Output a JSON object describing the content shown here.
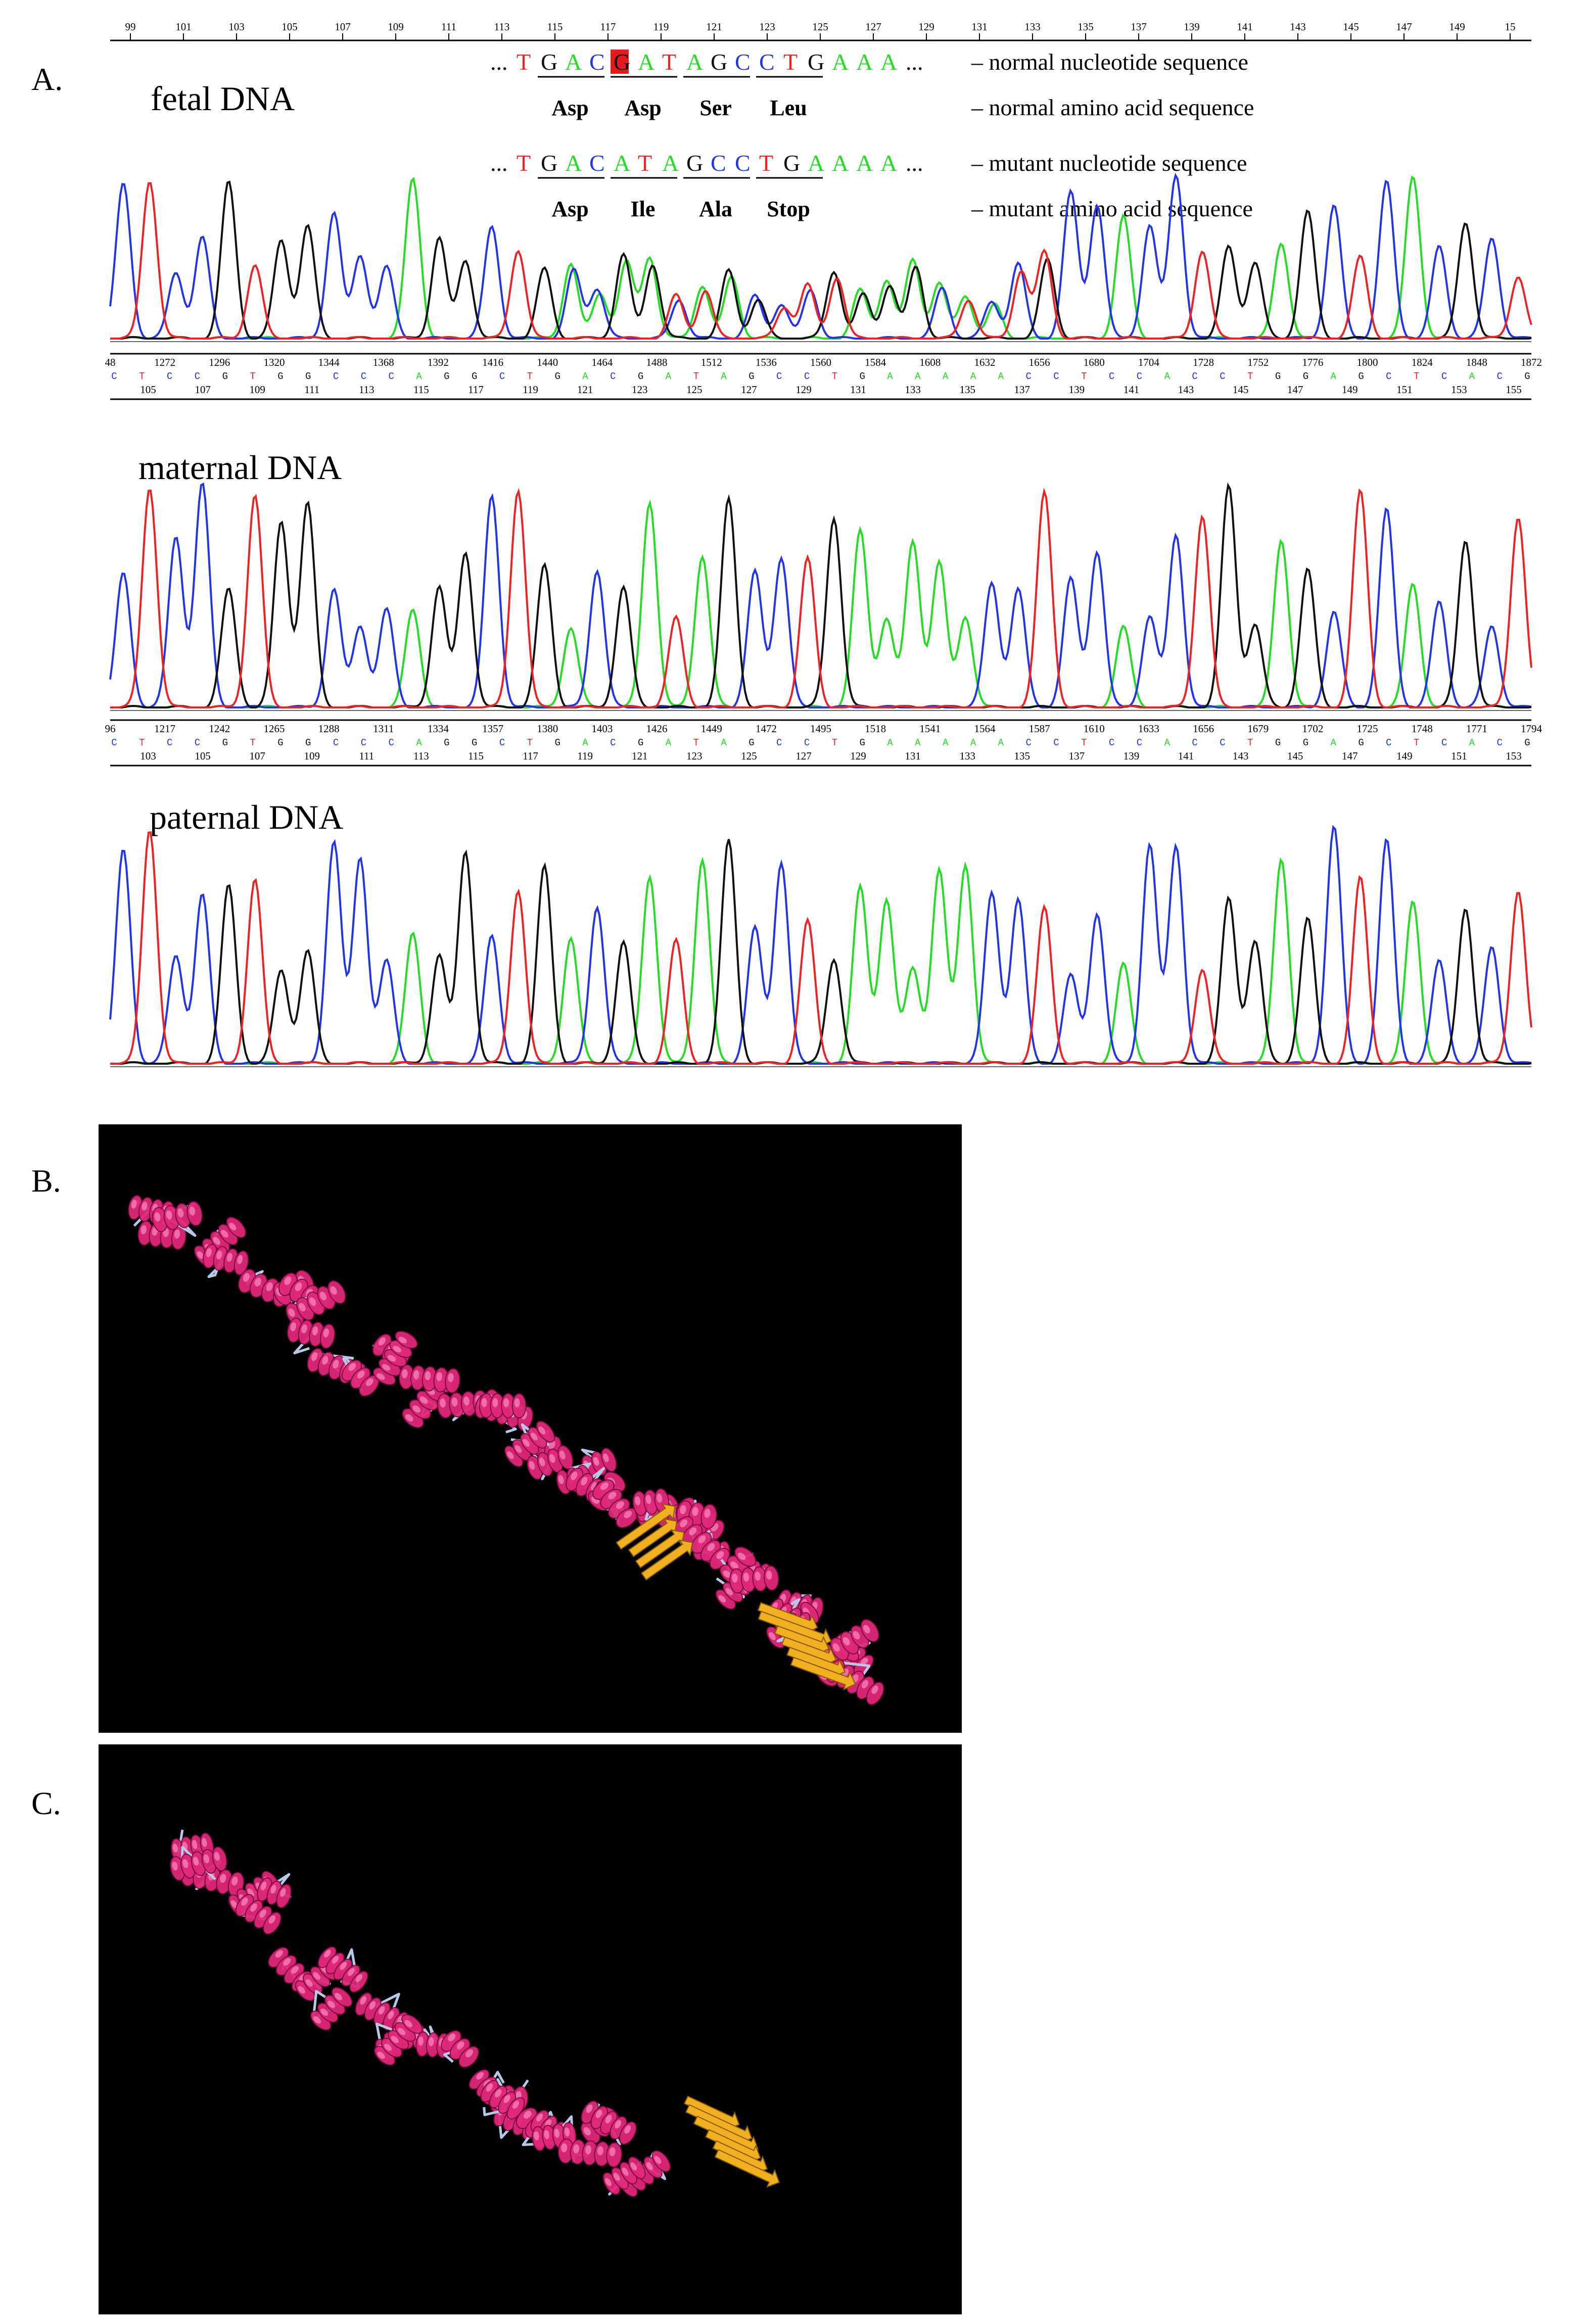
{
  "figure": {
    "panel_labels": {
      "a": "A.",
      "b": "B.",
      "c": "C."
    },
    "colors": {
      "A": "#22dd22",
      "C": "#2233ee",
      "G": "#111111",
      "T": "#ee2222",
      "helix": "#e0287a",
      "sheet": "#f0b020",
      "coil": "#b8c8e8",
      "mutation_highlight": "#e41a1c"
    }
  },
  "fetal": {
    "title": "fetal DNA",
    "top_ticks": [
      "99",
      "101",
      "103",
      "105",
      "107",
      "109",
      "111",
      "113",
      "115",
      "117",
      "119",
      "121",
      "123",
      "125",
      "127",
      "129",
      "131",
      "133",
      "135",
      "137",
      "139",
      "141",
      "143",
      "145",
      "147",
      "149",
      "15"
    ],
    "normal_nt": {
      "prefix": "...",
      "bases": [
        "T",
        "G",
        "A",
        "C",
        "G",
        "A",
        "T",
        "A",
        "G",
        "C",
        "C",
        "T",
        "G",
        "A",
        "A",
        "A"
      ],
      "suffix": "...",
      "label": "– normal nucleotide sequence"
    },
    "normal_aa": {
      "codons": [
        "Asp",
        "Asp",
        "Ser",
        "Leu"
      ],
      "label": "– normal amino acid sequence"
    },
    "mutant_nt": {
      "prefix": "...",
      "bases": [
        "T",
        "G",
        "A",
        "C",
        "A",
        "T",
        "A",
        "G",
        "C",
        "C",
        "T",
        "G",
        "A",
        "A",
        "A",
        "A"
      ],
      "suffix": "...",
      "label": "– mutant nucleotide sequence"
    },
    "mutant_aa": {
      "codons": [
        "Asp",
        "Ile",
        "Ala",
        "Stop"
      ],
      "label": "– mutant amino acid sequence"
    },
    "scan_ticks": [
      "48",
      "1272",
      "1296",
      "1320",
      "1344",
      "1368",
      "1392",
      "1416",
      "1440",
      "1464",
      "1488",
      "1512",
      "1536",
      "1560",
      "1584",
      "1608",
      "1632",
      "1656",
      "1680",
      "1704",
      "1728",
      "1752",
      "1776",
      "1800",
      "1824",
      "1848",
      "1872"
    ],
    "base_calls": [
      "C",
      "T",
      "C",
      "C",
      "G",
      "T",
      "G",
      "G",
      "C",
      "C",
      "C",
      "A",
      "G",
      "G",
      "C",
      "T",
      "G",
      "A",
      "C",
      "G",
      "A",
      "T",
      "A",
      "G",
      "C",
      "C",
      "T",
      "G",
      "A",
      "A",
      "A",
      "A",
      "A",
      "C",
      "C",
      "T",
      "C",
      "C",
      "A",
      "C",
      "C",
      "T",
      "G",
      "G",
      "A",
      "G",
      "C",
      "T",
      "C",
      "A",
      "C",
      "G"
    ],
    "bottom_ticks": [
      "105",
      "107",
      "109",
      "111",
      "113",
      "115",
      "117",
      "119",
      "121",
      "123",
      "125",
      "127",
      "129",
      "131",
      "133",
      "135",
      "137",
      "139",
      "141",
      "143",
      "145",
      "147",
      "149",
      "151",
      "153",
      "155"
    ]
  },
  "maternal": {
    "title": "maternal DNA",
    "scan_ticks": [
      "96",
      "1217",
      "1242",
      "1265",
      "1288",
      "1311",
      "1334",
      "1357",
      "1380",
      "1403",
      "1426",
      "1449",
      "1472",
      "1495",
      "1518",
      "1541",
      "1564",
      "1587",
      "1610",
      "1633",
      "1656",
      "1679",
      "1702",
      "1725",
      "1748",
      "1771",
      "1794"
    ],
    "base_calls": [
      "C",
      "T",
      "C",
      "C",
      "G",
      "T",
      "G",
      "G",
      "C",
      "C",
      "C",
      "A",
      "G",
      "G",
      "C",
      "T",
      "G",
      "A",
      "C",
      "G",
      "A",
      "T",
      "A",
      "G",
      "C",
      "C",
      "T",
      "G",
      "A",
      "A",
      "A",
      "A",
      "A",
      "C",
      "C",
      "T",
      "C",
      "C",
      "A",
      "C",
      "C",
      "T",
      "G",
      "G",
      "A",
      "G",
      "C",
      "T",
      "C",
      "A",
      "C",
      "G"
    ],
    "bottom_ticks": [
      "103",
      "105",
      "107",
      "109",
      "111",
      "113",
      "115",
      "117",
      "119",
      "121",
      "123",
      "125",
      "127",
      "129",
      "131",
      "133",
      "135",
      "137",
      "139",
      "141",
      "143",
      "145",
      "147",
      "149",
      "151",
      "153"
    ]
  },
  "paternal": {
    "title": "paternal DNA"
  }
}
